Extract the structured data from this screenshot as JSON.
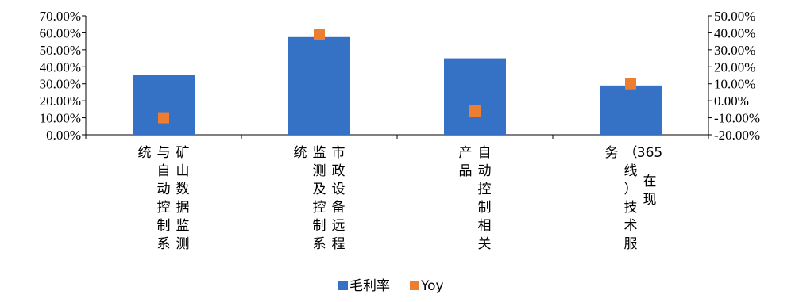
{
  "chart_data": {
    "type": "bar",
    "categories": [
      [
        "矿山数据监测",
        "与自动控制系",
        "统"
      ],
      [
        "市政设备远程",
        "监测及控制系",
        "统"
      ],
      [
        "自动控制相关",
        "产品"
      ],
      [
        "365在现",
        "（线）技术服",
        "务"
      ]
    ],
    "series": [
      {
        "name": "毛利率",
        "type": "bar",
        "axis": "left",
        "color": "#3572C6",
        "values": [
          35.0,
          57.5,
          45.0,
          29.0
        ]
      },
      {
        "name": "Yoy",
        "type": "marker",
        "axis": "right",
        "color": "#ED7D31",
        "values": [
          -10.0,
          39.0,
          -6.0,
          10.0
        ]
      }
    ],
    "left_axis": {
      "ylim": [
        0,
        70
      ],
      "ticks": [
        "70.00%",
        "60.00%",
        "50.00%",
        "40.00%",
        "30.00%",
        "20.00%",
        "10.00%",
        "0.00%"
      ]
    },
    "right_axis": {
      "ylim": [
        -20,
        50
      ],
      "ticks": [
        "50.00%",
        "40.00%",
        "30.00%",
        "20.00%",
        "10.00%",
        "0.00%",
        "-10.00%",
        "-20.00%"
      ]
    },
    "legend_position": "bottom",
    "grid": false
  }
}
